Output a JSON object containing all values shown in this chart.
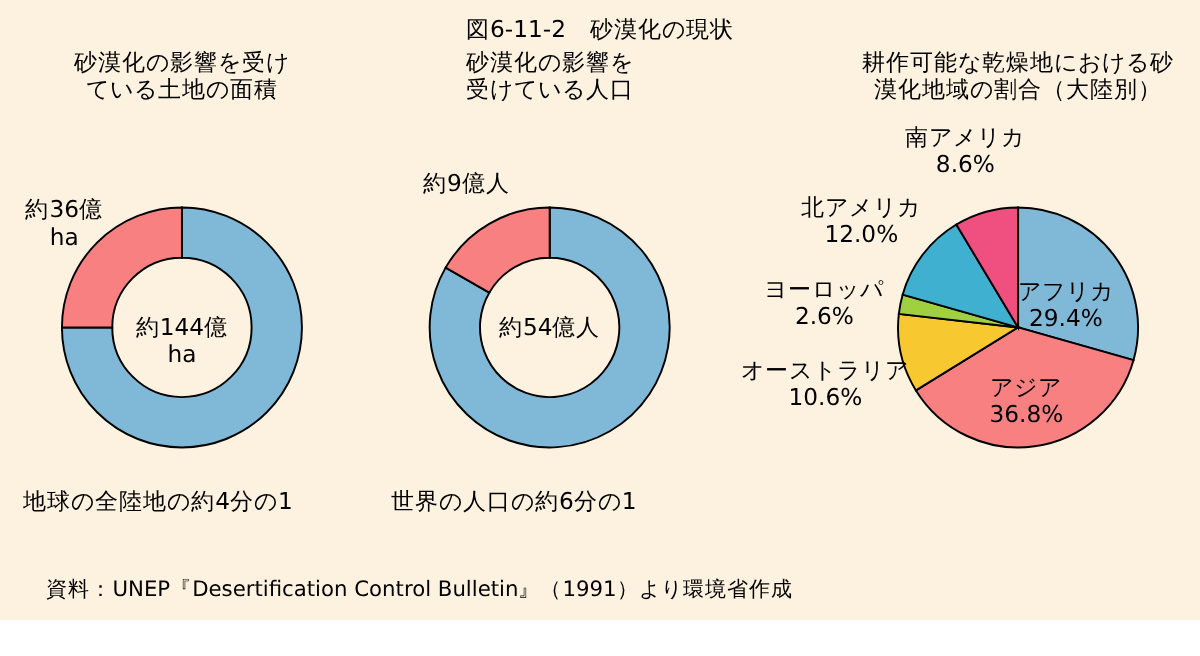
{
  "chart_data": [
    {
      "type": "donut",
      "title": "砂漠化の影響を受けている土地の面積",
      "categories": [
        null,
        "約36億\nha"
      ],
      "values": [
        75,
        25
      ],
      "colors": [
        "#80b8d8",
        "#f88080"
      ],
      "annotations": [
        "約144億\nha",
        "地球の全陸地の約4分の1",
        "図6-11-2　砂漠化の現状",
        "資料：UNEP『Desertification Control Bulletin』（1991）より環境省作成"
      ]
    },
    {
      "type": "donut",
      "title": "砂漠化の影響を受けている人口",
      "categories": [
        null,
        "約9億人"
      ],
      "values": [
        83.3,
        16.7
      ],
      "colors": [
        "#80b8d8",
        "#f88080"
      ],
      "annotations": [
        "約54億人",
        "世界の人口の約6分の1"
      ]
    },
    {
      "type": "pie",
      "title": "耕作可能な乾燥地における砂漠化地域の割合（大陸別）",
      "categories": [
        "アフリカ",
        "アジア",
        "オーストラリア",
        "ヨーロッパ",
        "北アメリカ",
        "南アメリカ"
      ],
      "values": [
        29.4,
        36.8,
        10.6,
        2.6,
        12.0,
        8.6
      ],
      "value_labels": [
        "29.4%",
        "36.8%",
        "10.6%",
        "2.6%",
        "12.0%",
        "8.6%"
      ],
      "colors": [
        "#80b8d8",
        "#f88080",
        "#f8c830",
        "#a0d040",
        "#40b0d0",
        "#f05080"
      ]
    }
  ]
}
